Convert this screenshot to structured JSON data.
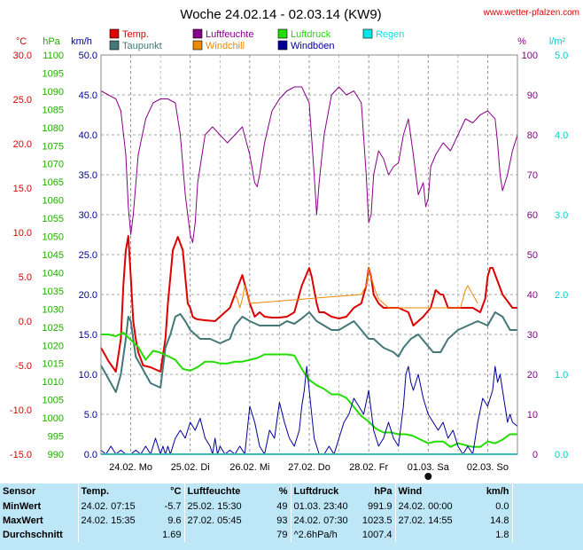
{
  "header": {
    "title": "Woche 24.02.14 - 02.03.14 (KW9)",
    "site": "www.wetter-pfalzen.com"
  },
  "axis_units": {
    "temp": "°C",
    "pressure": "hPa",
    "wind": "km/h",
    "humidity": "%",
    "rain": "l/m²"
  },
  "legend": [
    {
      "label": "Temp.",
      "color": "#dd0000"
    },
    {
      "label": "Luftfeuchte",
      "color": "#880088"
    },
    {
      "label": "Luftdruck",
      "color": "#22dd00"
    },
    {
      "label": "Regen",
      "color": "#00e6e6"
    },
    {
      "label": "Taupunkt",
      "color": "#447777"
    },
    {
      "label": "Windchill",
      "color": "#ee8800"
    },
    {
      "label": "Windböen",
      "color": "#000099"
    }
  ],
  "axes": {
    "temp": {
      "range": [
        -15,
        30
      ],
      "ticks": [
        "30.0",
        "25.0",
        "20.0",
        "15.0",
        "10.0",
        "5.0",
        "0.0",
        "-5.0",
        "-10.0",
        "-15.0"
      ],
      "color": "#dd0000"
    },
    "pressure": {
      "range": [
        990,
        1100
      ],
      "ticks": [
        "1100",
        "1095",
        "1090",
        "1085",
        "1080",
        "1075",
        "1070",
        "1065",
        "1060",
        "1055",
        "1050",
        "1045",
        "1040",
        "1035",
        "1030",
        "1025",
        "1020",
        "1015",
        "1010",
        "1005",
        "1000",
        "995",
        "990"
      ],
      "color": "#22aa00"
    },
    "wind": {
      "range": [
        0,
        50
      ],
      "ticks": [
        "50.0",
        "45.0",
        "40.0",
        "35.0",
        "30.0",
        "25.0",
        "20.0",
        "15.0",
        "10.0",
        "5.0",
        "0.0"
      ],
      "color": "#000099"
    },
    "humidity": {
      "range": [
        0,
        100
      ],
      "ticks": [
        "100",
        "90",
        "80",
        "70",
        "60",
        "50",
        "40",
        "30",
        "20",
        "10",
        "0"
      ],
      "color": "#880088"
    },
    "rain": {
      "range": [
        0,
        5
      ],
      "ticks": [
        "5.0",
        "4.0",
        "3.0",
        "2.0",
        "1.0",
        "0.0"
      ],
      "color": "#00cccc"
    },
    "x": {
      "range": [
        0,
        168
      ],
      "unit": "hours",
      "labels": [
        "24.02. Mo",
        "25.02. Di",
        "26.02. Mi",
        "27.02. Do",
        "28.02. Fr",
        "01.03. Sa",
        "02.03. So"
      ]
    }
  },
  "chart_data": {
    "type": "line",
    "title": "Woche 24.02.14 - 02.03.14 (KW9)",
    "x_unit": "hours since 24.02. 00:00",
    "series": [
      {
        "name": "Luftfeuchte",
        "axis": "humidity",
        "color": "#880088",
        "x": [
          0,
          3,
          6,
          8,
          10,
          11,
          12,
          13,
          15,
          18,
          21,
          24,
          27,
          30,
          32,
          34,
          36,
          37,
          38,
          39,
          42,
          45,
          48,
          51,
          54,
          57,
          60,
          62,
          63,
          64,
          66,
          69,
          72,
          75,
          78,
          81,
          84,
          86,
          87,
          88,
          90,
          93,
          96,
          99,
          102,
          105,
          107,
          108,
          109,
          110,
          112,
          114,
          116,
          118,
          120,
          122,
          124,
          126,
          128,
          130,
          131,
          132,
          133,
          135,
          138,
          141,
          144,
          147,
          150,
          153,
          156,
          159,
          160,
          161,
          162,
          164,
          166,
          168
        ],
        "y": [
          91,
          90,
          89,
          86,
          75,
          62,
          55,
          60,
          75,
          84,
          88,
          89,
          89,
          88,
          80,
          65,
          55,
          53,
          58,
          68,
          80,
          82,
          80,
          78,
          80,
          82,
          75,
          68,
          67,
          70,
          78,
          86,
          89,
          91,
          92,
          92,
          88,
          70,
          60,
          68,
          80,
          90,
          92,
          90,
          91,
          88,
          70,
          58,
          60,
          70,
          76,
          74,
          70,
          72,
          73,
          80,
          84,
          75,
          65,
          68,
          62,
          64,
          72,
          75,
          78,
          76,
          80,
          84,
          83,
          85,
          86,
          84,
          78,
          70,
          66,
          70,
          76,
          80
        ]
      },
      {
        "name": "Temp.",
        "axis": "temp",
        "color": "#dd0000",
        "x": [
          0,
          3,
          6,
          8,
          9,
          10,
          11,
          12,
          13,
          14,
          15,
          17,
          20,
          24,
          26,
          27,
          29,
          31,
          33,
          34,
          35,
          36,
          37,
          38,
          39,
          42,
          46,
          48,
          52,
          54,
          57,
          60,
          62,
          64,
          66,
          69,
          72,
          75,
          78,
          81,
          84,
          85,
          86,
          87,
          88,
          90,
          93,
          96,
          99,
          102,
          105,
          107,
          108,
          109,
          110,
          112,
          114,
          116,
          118,
          120,
          124,
          126,
          128,
          130,
          133,
          135,
          137,
          138,
          140,
          144,
          147,
          150,
          153,
          155,
          156,
          157,
          158,
          160,
          162,
          166,
          168
        ],
        "y": [
          -3,
          -4.5,
          -5.7,
          -2,
          4,
          8,
          9.6,
          5,
          0,
          -2,
          -3.5,
          -5,
          -5.2,
          -5.7,
          -2,
          2,
          8,
          9.5,
          8,
          5,
          2,
          1.5,
          0.5,
          0.3,
          0.2,
          0.1,
          0,
          0.5,
          1.5,
          3,
          5.2,
          2,
          0.5,
          1,
          0.5,
          0.4,
          0.4,
          0.5,
          1,
          4,
          6,
          5,
          3.5,
          2,
          1,
          1,
          0.5,
          0.3,
          0.5,
          1.5,
          2,
          4,
          6,
          5,
          3,
          2,
          1.5,
          1.5,
          1.5,
          1.5,
          1,
          -0.5,
          0,
          0.5,
          1.5,
          3.5,
          3,
          3,
          1.5,
          1.5,
          1.5,
          1.5,
          1,
          2.5,
          5,
          6,
          6,
          4.5,
          3,
          1.5,
          1.5
        ]
      },
      {
        "name": "Taupunkt",
        "axis": "temp",
        "color": "#447777",
        "x": [
          0,
          3,
          6,
          8,
          10,
          11,
          12,
          14,
          18,
          20,
          24,
          26,
          28,
          30,
          32,
          34,
          36,
          40,
          44,
          48,
          52,
          54,
          57,
          60,
          64,
          69,
          72,
          75,
          78,
          81,
          84,
          87,
          90,
          93,
          96,
          99,
          102,
          105,
          108,
          110,
          114,
          118,
          120,
          122,
          125,
          128,
          131,
          134,
          137,
          140,
          144,
          148,
          152,
          156,
          159,
          162,
          165,
          168
        ],
        "y": [
          -5,
          -6.5,
          -8,
          -6,
          -2,
          0.5,
          0,
          -4,
          -6,
          -7,
          -7.5,
          -3,
          -1.5,
          0.5,
          0.8,
          0,
          -1,
          -2,
          -2,
          -2.5,
          -2,
          -0.5,
          0.5,
          0,
          -0.5,
          -0.5,
          -0.5,
          0,
          -0.3,
          0.3,
          1,
          0,
          -0.5,
          -1,
          -1,
          -0.5,
          0,
          -1,
          -2,
          -2,
          -3,
          -3.5,
          -4,
          -3,
          -2,
          -1.5,
          -2.5,
          -3.5,
          -3.5,
          -2,
          -1,
          -0.5,
          0,
          -0.5,
          1,
          0.5,
          -1,
          -1
        ]
      },
      {
        "name": "Windchill",
        "axis": "temp",
        "color": "#ee8800",
        "x": [
          54,
          55,
          56,
          57,
          58,
          60,
          105,
          106,
          107,
          108,
          109,
          110,
          111,
          112,
          114,
          116,
          145,
          146,
          147,
          148,
          149,
          150,
          151,
          152
        ],
        "y": [
          3,
          2.5,
          1.5,
          2.5,
          4,
          2,
          3,
          3.5,
          4,
          6,
          5,
          4,
          3.2,
          2.5,
          2,
          1.5,
          1.5,
          2.5,
          3.5,
          4,
          3.5,
          3,
          2.5,
          2
        ]
      },
      {
        "name": "Luftdruck",
        "axis": "pressure",
        "color": "#22dd00",
        "x": [
          0,
          3,
          6,
          9,
          12,
          15,
          18,
          21,
          24,
          27,
          30,
          33,
          36,
          39,
          42,
          45,
          48,
          51,
          54,
          57,
          60,
          63,
          66,
          69,
          72,
          75,
          78,
          81,
          84,
          87,
          90,
          93,
          96,
          99,
          102,
          105,
          108,
          111,
          114,
          117,
          120,
          123,
          126,
          129,
          132,
          135,
          138,
          141,
          144,
          147,
          150,
          153,
          156,
          159,
          162,
          165,
          168
        ],
        "y": [
          1023,
          1023,
          1022.5,
          1023.5,
          1021.5,
          1019.5,
          1016,
          1018.5,
          1018,
          1017,
          1016,
          1013.5,
          1013,
          1014,
          1015.5,
          1015.5,
          1015,
          1015,
          1015.5,
          1015.5,
          1016,
          1016.5,
          1017.5,
          1017.5,
          1017.5,
          1017.5,
          1017.2,
          1013.5,
          1010.5,
          1009,
          1008,
          1006.5,
          1006.5,
          1005.5,
          1003,
          1000.5,
          999,
          997,
          996,
          996,
          995.5,
          995.5,
          995,
          994,
          993,
          993.5,
          993.5,
          992,
          993,
          992.5,
          992,
          992,
          993.5,
          993,
          994,
          995.5,
          995.5
        ]
      },
      {
        "name": "Windböen",
        "axis": "wind",
        "color": "#000099",
        "x": [
          0,
          2,
          4,
          6,
          8,
          10,
          12,
          14,
          16,
          18,
          20,
          22,
          24,
          25,
          26,
          27,
          28,
          30,
          32,
          34,
          36,
          38,
          40,
          42,
          44,
          45,
          46,
          47,
          48,
          50,
          52,
          54,
          56,
          58,
          60,
          62,
          64,
          66,
          68,
          70,
          72,
          74,
          76,
          78,
          80,
          81,
          82,
          83,
          84,
          85,
          86,
          88,
          90,
          92,
          94,
          96,
          98,
          100,
          102,
          104,
          106,
          108,
          110,
          112,
          114,
          116,
          118,
          120,
          122,
          123,
          124,
          125,
          126,
          128,
          130,
          132,
          134,
          136,
          138,
          140,
          142,
          144,
          146,
          148,
          150,
          152,
          154,
          156,
          158,
          159,
          160,
          161,
          162,
          163,
          164,
          165,
          166,
          168
        ],
        "y": [
          0.5,
          0,
          1,
          0,
          0.5,
          0,
          0,
          0.5,
          0,
          1,
          0,
          2,
          0,
          1,
          0,
          1,
          0,
          2,
          3,
          2,
          4,
          3,
          4.5,
          2,
          1,
          0,
          2,
          0,
          1,
          0,
          0.5,
          0,
          1,
          0,
          6,
          4,
          1,
          0,
          3,
          2,
          6.5,
          4,
          2,
          1,
          3,
          6,
          8,
          11,
          8,
          5,
          2,
          0,
          0,
          1,
          0,
          2,
          4,
          5,
          7,
          6,
          5,
          8,
          3,
          1,
          2,
          4,
          2,
          1,
          6,
          10,
          11,
          9,
          8,
          10,
          7,
          5,
          4,
          3,
          4,
          2,
          3,
          1,
          0,
          1,
          0,
          4,
          7,
          6,
          8,
          11,
          9,
          10,
          8,
          6,
          4,
          5,
          4,
          3.5
        ]
      },
      {
        "name": "Regen",
        "axis": "rain",
        "color": "#00e6e6",
        "x": [
          0,
          168
        ],
        "y": [
          0,
          0
        ]
      }
    ]
  },
  "x_axis_marker": "01.03. Sa",
  "stats": {
    "headers": {
      "sensor": "Sensor",
      "temp": "Temp.",
      "temp_unit": "°C",
      "hum": "Luftfeuchte",
      "hum_unit": "%",
      "press": "Luftdruck",
      "press_unit": "hPa",
      "wind": "Wind",
      "wind_unit": "km/h"
    },
    "rows": [
      {
        "label": "MinWert",
        "temp_time": "24.02.  07:15",
        "temp_val": "-5.7",
        "hum_time": "25.02.  15:30",
        "hum_val": "49",
        "press_time": "01.03.  23:40",
        "press_val": "991.9",
        "wind_time": "24.02.  00:00",
        "wind_val": "0.0"
      },
      {
        "label": "MaxWert",
        "temp_time": "24.02.  15:35",
        "temp_val": "9.6",
        "hum_time": "27.02.  05:45",
        "hum_val": "93",
        "press_time": "24.02.  07:30",
        "press_val": "1023.5",
        "wind_time": "27.02.  14:55",
        "wind_val": "14.8"
      },
      {
        "label": "Durchschnitt",
        "temp_time": "",
        "temp_val": "1.69",
        "hum_time": "",
        "hum_val": "79",
        "press_time": "^2.6hPa/h",
        "press_val": "1007.4",
        "wind_time": "",
        "wind_val": "1.8"
      }
    ]
  }
}
